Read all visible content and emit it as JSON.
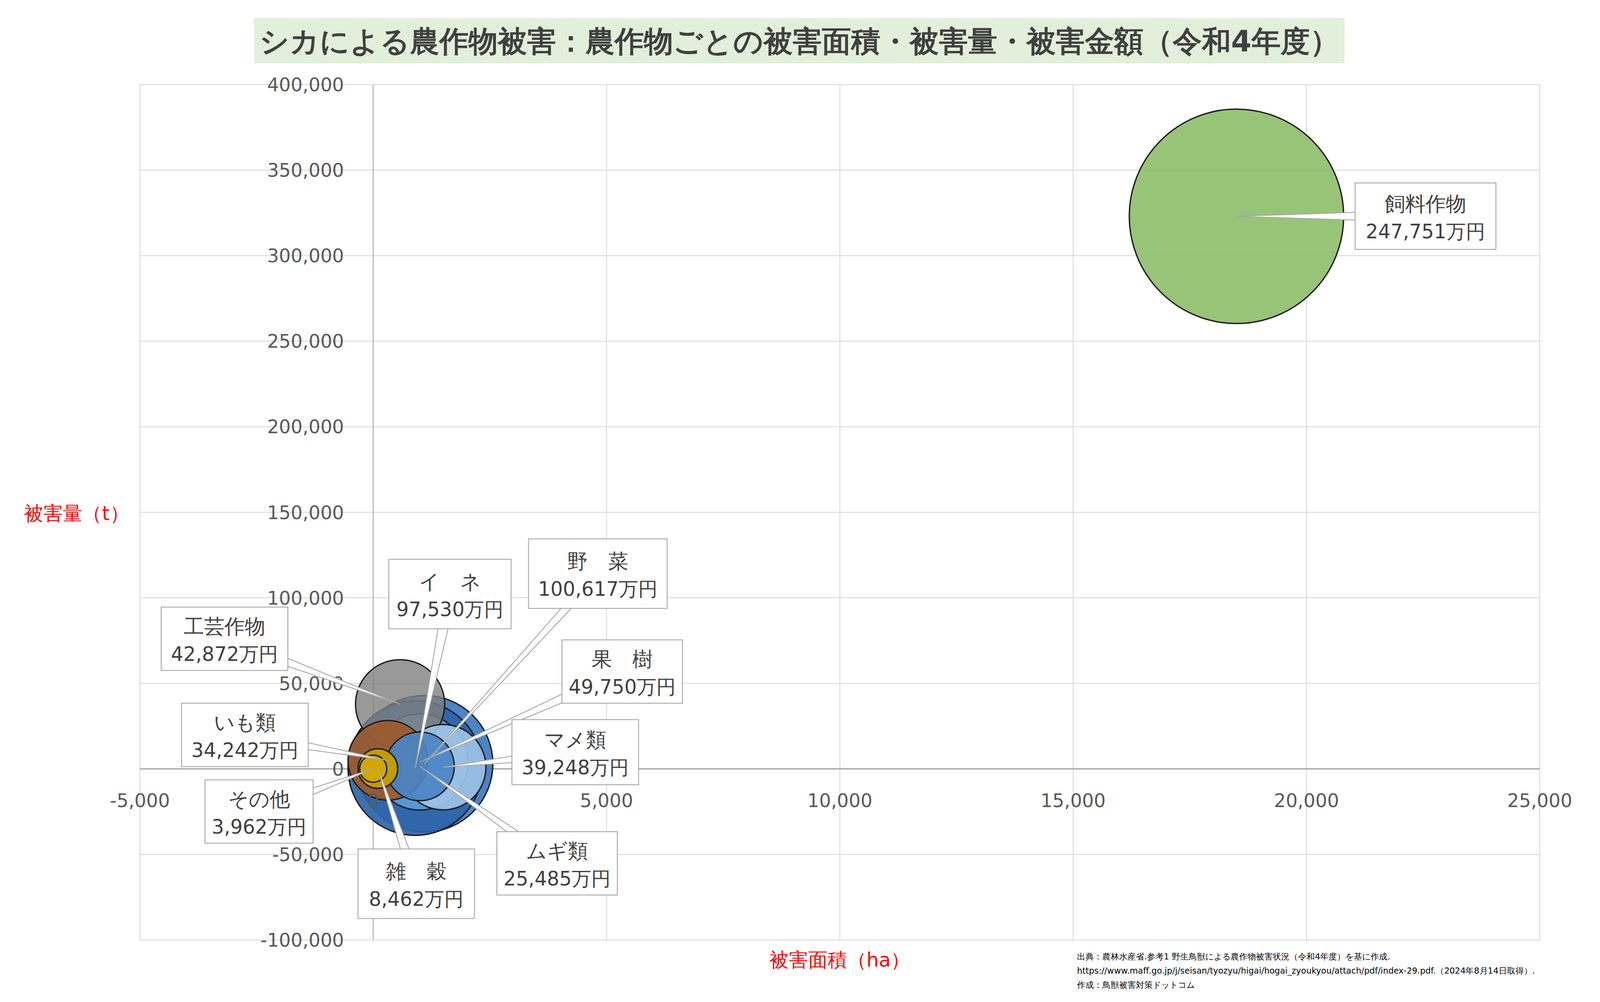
{
  "chart_data": {
    "type": "bubble",
    "title": "シカによる農作物被害：農作物ごとの被害面積・被害量・被害金額（令和4年度）",
    "x_label": "被害面積（ha）",
    "y_label": "被害量（t）",
    "categories": [
      "飼料作物",
      "野　菜",
      "イ　ネ",
      "果　樹",
      "工芸作物",
      "マメ類",
      "いも類",
      "ムギ類",
      "雑　穀",
      "その他"
    ],
    "x": [
      18500,
      1100,
      900,
      1000,
      575,
      1500,
      313,
      1000,
      100,
      0
    ],
    "values": [
      323000,
      3000,
      500,
      4000,
      37800,
      1000,
      5000,
      1500,
      200,
      100
    ],
    "sizes": [
      247751,
      100617,
      97530,
      49750,
      42872,
      39248,
      34242,
      25485,
      8462,
      3962
    ],
    "value_labels": [
      "247,751万円",
      "100,617万円",
      "97,530万円",
      "49,750万円",
      "42,872万円",
      "39,248万円",
      "34,242万円",
      "25,485万円",
      "8,462万円",
      "3,962万円"
    ],
    "colors": [
      "#8fbf6c",
      "#3f78bf",
      "#2e64a8",
      "#5b9bd5",
      "#7f7f7f",
      "#9dc3e6",
      "#9c5a2e",
      "#4a86c6",
      "#c9a000",
      "#d4a800"
    ],
    "data_labels": true,
    "grid": true,
    "xlim": [
      -5000,
      25000
    ],
    "xticks": [
      {
        "value": -5000,
        "label": "-5,000"
      },
      0,
      {
        "value": 5000,
        "label": "5,000"
      },
      {
        "value": 10000,
        "label": "10,000"
      },
      {
        "value": 15000,
        "label": "15,000"
      },
      {
        "value": 20000,
        "label": "20,000"
      },
      {
        "value": 25000,
        "label": "25,000"
      }
    ],
    "ylim": [
      -100000,
      400000
    ],
    "yticks": [
      {
        "value": -100000,
        "label": "-100,000"
      },
      {
        "value": -50000,
        "label": "-50,000"
      },
      0,
      {
        "value": 50000,
        "label": "50,000"
      },
      {
        "value": 100000,
        "label": "100,000"
      },
      {
        "value": 150000,
        "label": "150,000"
      },
      {
        "value": 200000,
        "label": "200,000"
      },
      {
        "value": 250000,
        "label": "250,000"
      },
      {
        "value": 300000,
        "label": "300,000"
      },
      {
        "value": 350000,
        "label": "350,000"
      },
      {
        "value": 400000,
        "label": "400,000"
      }
    ],
    "source": [
      "出典：農林水産省.参考1 野生鳥獣による農作物被害状況（令和4年度）を基に作成.",
      "https://www.maff.go.jp/j/seisan/tyozyu/higai/hogai_zyoukyou/attach/pdf/index-29.pdf.（2024年8月14日取得）.",
      "作成：鳥獣被害対策ドットコム"
    ]
  }
}
